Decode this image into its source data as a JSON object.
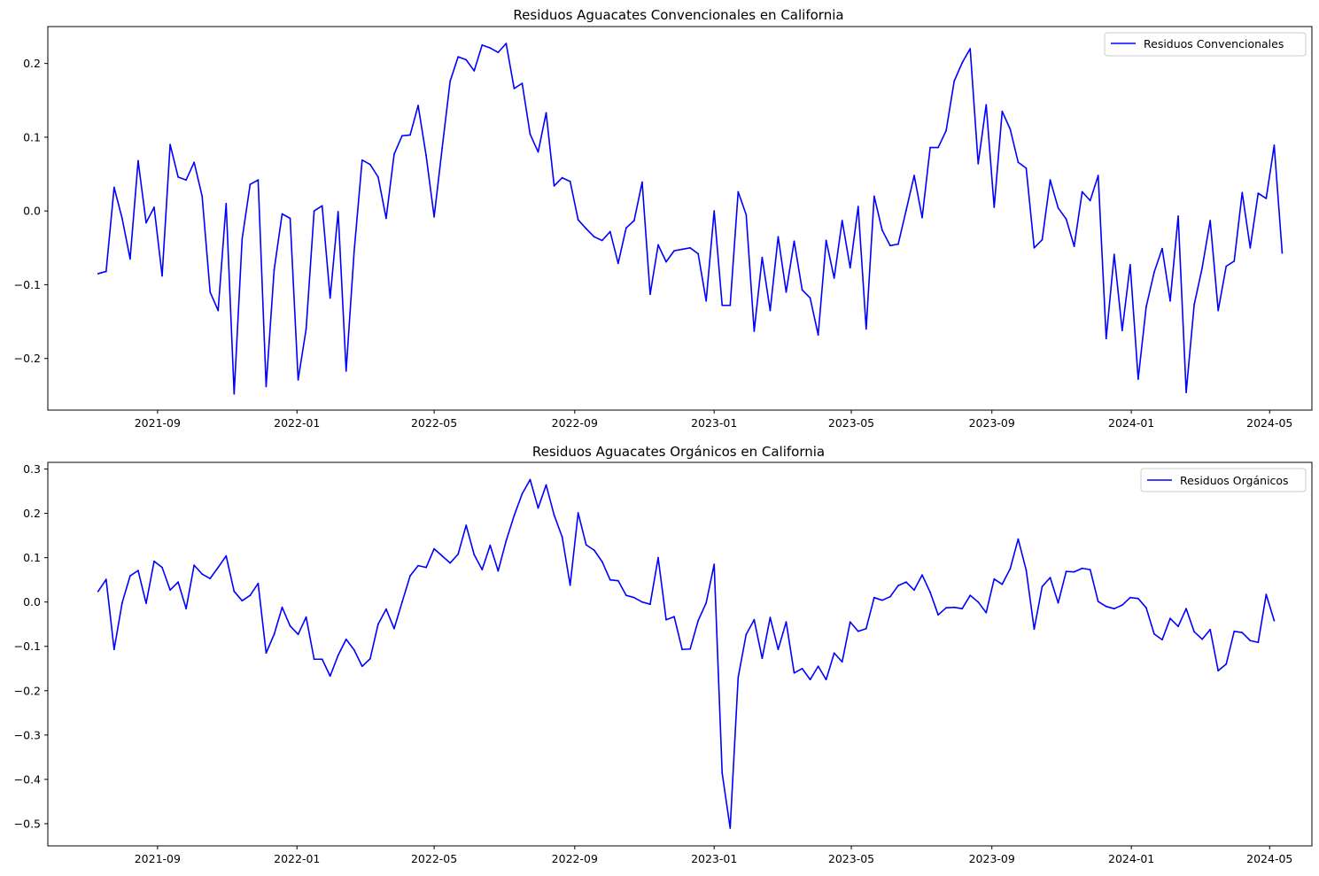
{
  "colors": {
    "series": "#0000ff",
    "axes": "#000000",
    "background": "#ffffff"
  },
  "chart_data": [
    {
      "type": "line",
      "title": "Residuos Aguacates Convencionales en California",
      "xlabel": "",
      "ylabel": "",
      "xlim": [
        "2021-05-28",
        "2024-06-07"
      ],
      "ylim": [
        -0.27,
        0.25
      ],
      "x_ticks": [
        "2021-09",
        "2022-01",
        "2022-05",
        "2022-09",
        "2023-01",
        "2023-05",
        "2023-09",
        "2024-01",
        "2024-05"
      ],
      "y_ticks": [
        {
          "value": -0.2,
          "label": "−0.2"
        },
        {
          "value": -0.1,
          "label": "−0.1"
        },
        {
          "value": 0.0,
          "label": "0.0"
        },
        {
          "value": 0.1,
          "label": "0.1"
        },
        {
          "value": 0.2,
          "label": "0.2"
        }
      ],
      "legend": {
        "position": "upper-right",
        "entries": [
          "Residuos Convencionales"
        ]
      },
      "grid": false,
      "x_start": "2021-07-11",
      "x_step_days": 7,
      "series": [
        {
          "name": "Residuos Convencionales",
          "values": [
            -0.085,
            -0.082,
            0.032,
            -0.01,
            -0.065,
            0.068,
            -0.016,
            0.005,
            -0.088,
            0.09,
            0.046,
            0.042,
            0.066,
            0.02,
            -0.11,
            -0.135,
            0.01,
            -0.248,
            -0.038,
            0.036,
            0.042,
            -0.238,
            -0.08,
            -0.004,
            -0.01,
            -0.229,
            -0.16,
            0.0,
            0.007,
            -0.118,
            -0.001,
            -0.217,
            -0.055,
            0.069,
            0.063,
            0.046,
            -0.01,
            0.077,
            0.102,
            0.103,
            0.143,
            0.075,
            -0.008,
            0.085,
            0.176,
            0.209,
            0.205,
            0.19,
            0.225,
            0.221,
            0.215,
            0.227,
            0.166,
            0.173,
            0.104,
            0.08,
            0.133,
            0.034,
            0.045,
            0.04,
            -0.012,
            -0.024,
            -0.035,
            -0.04,
            -0.028,
            -0.071,
            -0.023,
            -0.013,
            0.039,
            -0.113,
            -0.046,
            -0.069,
            -0.054,
            -0.052,
            -0.05,
            -0.058,
            -0.122,
            0.0,
            -0.128,
            -0.128,
            0.026,
            -0.005,
            -0.163,
            -0.063,
            -0.135,
            -0.035,
            -0.11,
            -0.041,
            -0.107,
            -0.118,
            -0.168,
            -0.04,
            -0.091,
            -0.013,
            -0.077,
            0.006,
            -0.16,
            0.02,
            -0.026,
            -0.047,
            -0.045,
            0.001,
            0.048,
            -0.009,
            0.086,
            0.086,
            0.109,
            0.176,
            0.201,
            0.22,
            0.064,
            0.144,
            0.005,
            0.135,
            0.111,
            0.066,
            0.058,
            -0.05,
            -0.039,
            0.042,
            0.004,
            -0.011,
            -0.048,
            0.026,
            0.014,
            0.048,
            -0.173,
            -0.059,
            -0.162,
            -0.073,
            -0.228,
            -0.13,
            -0.083,
            -0.051,
            -0.122,
            -0.007,
            -0.246,
            -0.127,
            -0.077,
            -0.013,
            -0.135,
            -0.075,
            -0.068,
            0.025,
            -0.05,
            0.024,
            0.017,
            0.089,
            -0.057
          ]
        }
      ]
    },
    {
      "type": "line",
      "title": "Residuos Aguacates Orgánicos en California",
      "xlabel": "",
      "ylabel": "",
      "xlim": [
        "2021-05-28",
        "2024-06-07"
      ],
      "ylim": [
        -0.55,
        0.315
      ],
      "x_ticks": [
        "2021-09",
        "2022-01",
        "2022-05",
        "2022-09",
        "2023-01",
        "2023-05",
        "2023-09",
        "2024-01",
        "2024-05"
      ],
      "y_ticks": [
        {
          "value": -0.5,
          "label": "−0.5"
        },
        {
          "value": -0.4,
          "label": "−0.4"
        },
        {
          "value": -0.3,
          "label": "−0.3"
        },
        {
          "value": -0.2,
          "label": "−0.2"
        },
        {
          "value": -0.1,
          "label": "−0.1"
        },
        {
          "value": 0.0,
          "label": "0.0"
        },
        {
          "value": 0.1,
          "label": "0.1"
        },
        {
          "value": 0.2,
          "label": "0.2"
        },
        {
          "value": 0.3,
          "label": "0.3"
        }
      ],
      "legend": {
        "position": "upper-right",
        "entries": [
          "Residuos Orgánicos"
        ]
      },
      "grid": false,
      "x_start": "2021-07-11",
      "x_step_days": 7,
      "series": [
        {
          "name": "Residuos Orgánicos",
          "values": [
            0.024,
            0.051,
            -0.107,
            -0.002,
            0.059,
            0.071,
            -0.003,
            0.092,
            0.078,
            0.027,
            0.045,
            -0.015,
            0.083,
            0.063,
            0.053,
            0.078,
            0.104,
            0.024,
            0.003,
            0.015,
            0.042,
            -0.115,
            -0.073,
            -0.012,
            -0.054,
            -0.073,
            -0.034,
            -0.129,
            -0.129,
            -0.167,
            -0.12,
            -0.084,
            -0.108,
            -0.145,
            -0.128,
            -0.05,
            -0.016,
            -0.06,
            0.0,
            0.059,
            0.082,
            0.078,
            0.12,
            0.104,
            0.088,
            0.108,
            0.173,
            0.107,
            0.073,
            0.128,
            0.07,
            0.138,
            0.195,
            0.244,
            0.276,
            0.212,
            0.264,
            0.196,
            0.147,
            0.038,
            0.201,
            0.129,
            0.117,
            0.091,
            0.05,
            0.048,
            0.015,
            0.01,
            0.0,
            -0.005,
            0.1,
            -0.04,
            -0.033,
            -0.107,
            -0.106,
            -0.042,
            -0.002,
            0.085,
            -0.386,
            -0.51,
            -0.17,
            -0.073,
            -0.04,
            -0.127,
            -0.035,
            -0.107,
            -0.045,
            -0.16,
            -0.15,
            -0.175,
            -0.145,
            -0.175,
            -0.115,
            -0.135,
            -0.045,
            -0.066,
            -0.06,
            0.01,
            0.004,
            0.012,
            0.037,
            0.045,
            0.027,
            0.061,
            0.022,
            -0.029,
            -0.013,
            -0.012,
            -0.015,
            0.015,
            0.0,
            -0.024,
            0.052,
            0.04,
            0.075,
            0.142,
            0.072,
            -0.061,
            0.035,
            0.055,
            -0.002,
            0.069,
            0.068,
            0.076,
            0.073,
            0.001,
            -0.01,
            -0.015,
            -0.007,
            0.01,
            0.008,
            -0.013,
            -0.072,
            -0.085,
            -0.037,
            -0.055,
            -0.015,
            -0.067,
            -0.084,
            -0.062,
            -0.155,
            -0.14,
            -0.066,
            -0.069,
            -0.087,
            -0.091,
            0.017,
            -0.042
          ]
        }
      ]
    }
  ]
}
